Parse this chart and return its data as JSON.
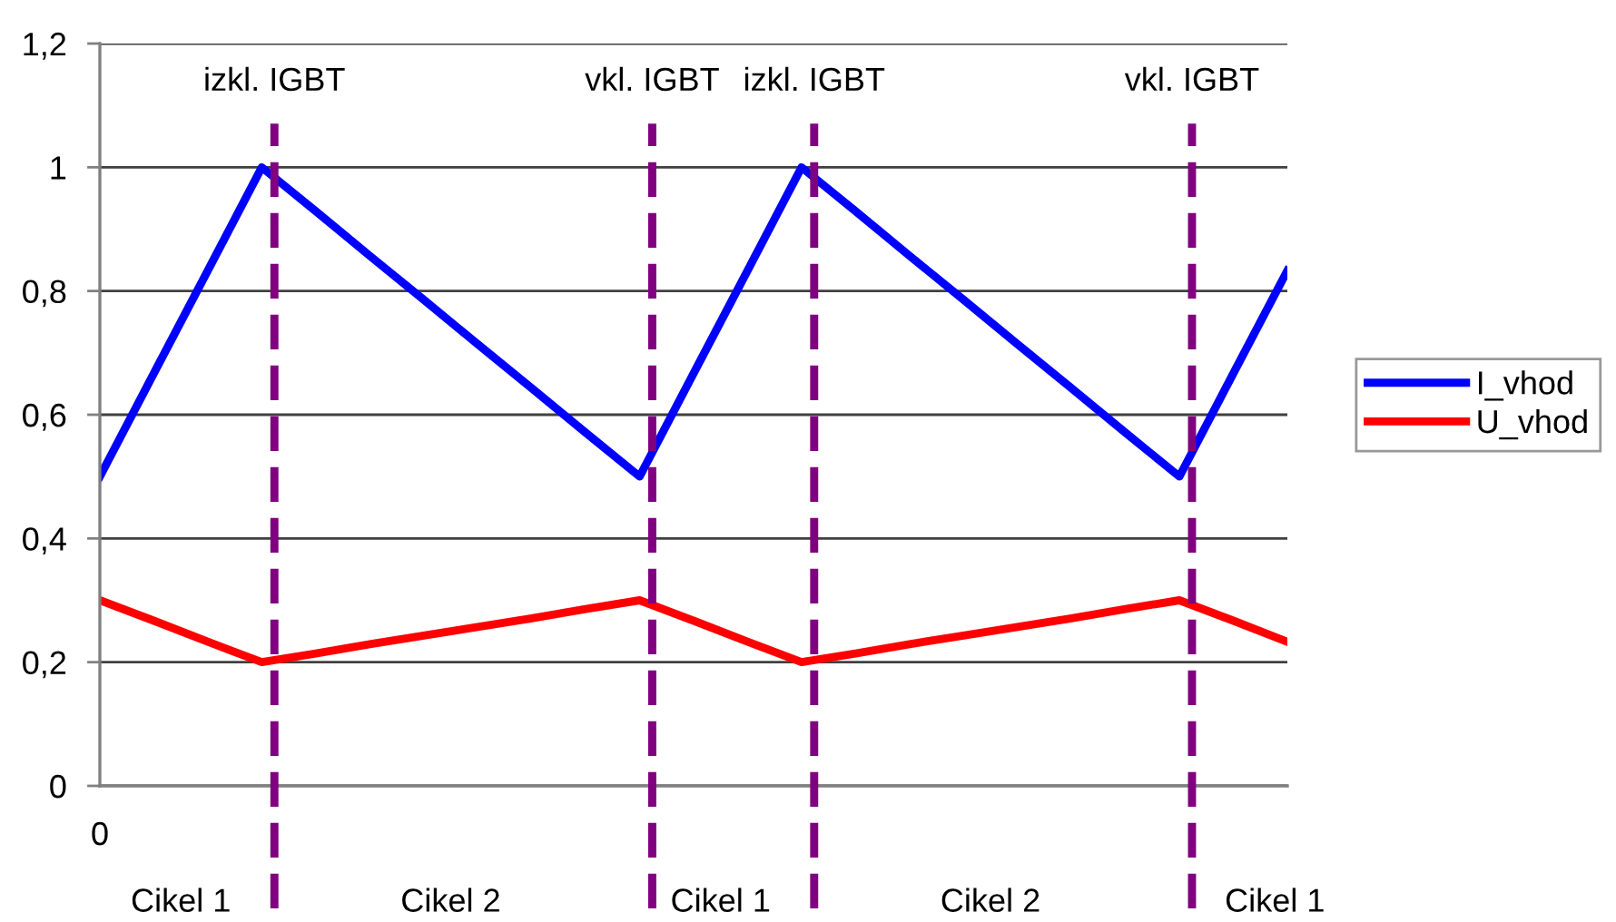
{
  "chart_data": {
    "type": "line",
    "categories": [
      "0",
      null,
      null,
      null,
      null,
      null,
      null,
      null,
      null,
      null,
      null,
      null,
      null,
      null,
      null,
      null,
      null,
      null,
      null,
      null,
      null,
      null,
      null
    ],
    "series": [
      {
        "name": "I_vhod",
        "color": "#0000ff",
        "values": [
          0.5,
          0.667,
          0.833,
          1,
          0.929,
          0.857,
          0.786,
          0.714,
          0.643,
          0.571,
          0.5,
          0.667,
          0.833,
          1,
          0.929,
          0.857,
          0.786,
          0.714,
          0.643,
          0.571,
          0.5,
          0.667,
          0.833
        ]
      },
      {
        "name": "U_vhod",
        "color": "#ff0000",
        "values": [
          0.3,
          0.267,
          0.233,
          0.2,
          0.214,
          0.229,
          0.243,
          0.257,
          0.271,
          0.286,
          0.3,
          0.267,
          0.233,
          0.2,
          0.214,
          0.229,
          0.243,
          0.257,
          0.271,
          0.286,
          0.3,
          0.267,
          0.233
        ]
      }
    ],
    "ylim": [
      0,
      1.2
    ],
    "yticks": [
      {
        "value": 0,
        "label": "0"
      },
      {
        "value": 0.2,
        "label": "0,2"
      },
      {
        "value": 0.4,
        "label": "0,4"
      },
      {
        "value": 0.6,
        "label": "0,6"
      },
      {
        "value": 0.8,
        "label": "0,8"
      },
      {
        "value": 1,
        "label": "1"
      },
      {
        "value": 1.2,
        "label": "1,2"
      }
    ],
    "grid": "y",
    "legend": "right",
    "annotations": [
      "izkl. IGBT",
      "vkl. IGBT",
      "izkl. IGBT",
      "vkl. IGBT",
      "Cikel 1",
      "Cikel 2",
      "Cikel 1",
      "Cikel 2",
      "Cikel 1"
    ]
  }
}
